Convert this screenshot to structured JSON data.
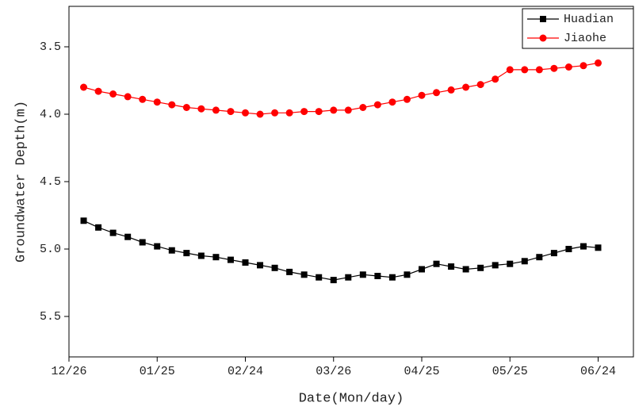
{
  "chart_data": {
    "type": "line",
    "x_label": "Date(Mon/day)",
    "y_label": "Groundwater Depth(m)",
    "x": [
      5,
      10,
      15,
      20,
      25,
      30,
      35,
      40,
      45,
      50,
      55,
      60,
      65,
      70,
      75,
      80,
      85,
      90,
      95,
      100,
      105,
      110,
      115,
      120,
      125,
      130,
      135,
      140,
      145,
      150,
      155,
      160,
      165,
      170,
      175,
      180
    ],
    "series": [
      {
        "name": "Huadian",
        "color": "#000000",
        "marker": "square",
        "values": [
          4.79,
          4.84,
          4.88,
          4.91,
          4.95,
          4.98,
          5.01,
          5.03,
          5.05,
          5.06,
          5.08,
          5.1,
          5.12,
          5.14,
          5.17,
          5.19,
          5.21,
          5.23,
          5.21,
          5.19,
          5.2,
          5.21,
          5.19,
          5.15,
          5.11,
          5.13,
          5.15,
          5.14,
          5.12,
          5.11,
          5.09,
          5.06,
          5.03,
          5.0,
          4.98,
          4.99
        ]
      },
      {
        "name": "Jiaohe",
        "color": "#ff0000",
        "marker": "circle",
        "values": [
          3.8,
          3.83,
          3.85,
          3.87,
          3.89,
          3.91,
          3.93,
          3.95,
          3.96,
          3.97,
          3.98,
          3.99,
          4.0,
          3.99,
          3.99,
          3.98,
          3.98,
          3.97,
          3.97,
          3.95,
          3.93,
          3.91,
          3.89,
          3.86,
          3.84,
          3.82,
          3.8,
          3.78,
          3.74,
          3.67,
          3.67,
          3.67,
          3.66,
          3.65,
          3.64,
          3.62
        ]
      }
    ],
    "xlim": [
      0,
      192
    ],
    "xticks": [
      {
        "value": 0,
        "label": "12/26"
      },
      {
        "value": 30,
        "label": "01/25"
      },
      {
        "value": 60,
        "label": "02/24"
      },
      {
        "value": 90,
        "label": "03/26"
      },
      {
        "value": 120,
        "label": "04/25"
      },
      {
        "value": 150,
        "label": "05/25"
      },
      {
        "value": 180,
        "label": "06/24"
      }
    ],
    "ylim": [
      3.2,
      5.8
    ],
    "y_inverted": true,
    "yticks": [
      3.5,
      {
        "value": 4,
        "label": "4.0"
      },
      4.5,
      {
        "value": 5,
        "label": "5.0"
      },
      5.5
    ],
    "legend": "top-right"
  }
}
